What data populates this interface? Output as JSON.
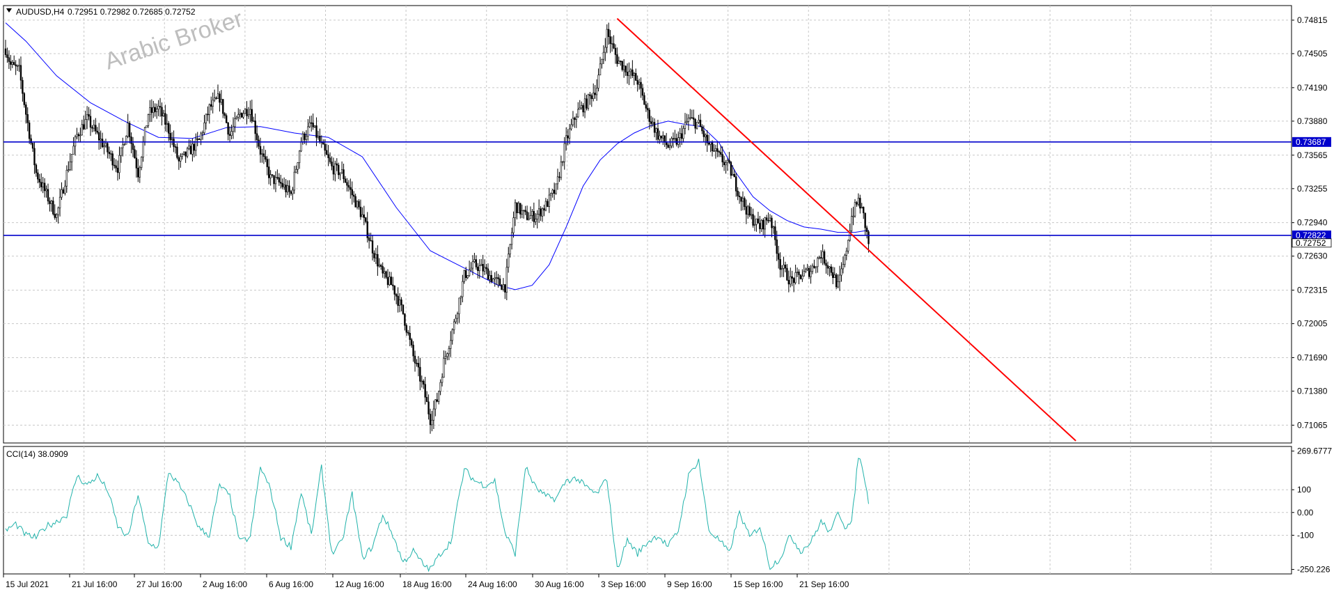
{
  "header": {
    "symbol_label": "AUDUSD,H4",
    "ohlc_text": "0.72951 0.72982 0.72685 0.72752"
  },
  "watermark": "Arabic Broker",
  "colors": {
    "grid": "#c8c8c8",
    "candle": "#000000",
    "ma": "#0000ff",
    "level": "#0000cc",
    "trend": "#ff0000",
    "cci": "#20b2aa",
    "tag_bg": "#0000cc"
  },
  "chart_data": [
    {
      "type": "candlestick",
      "title": "AUDUSD,H4",
      "ylim": [
        0.709,
        0.7495
      ],
      "y_ticks": [
        "0.74815",
        "0.74505",
        "0.74190",
        "0.73880",
        "0.73565",
        "0.73255",
        "0.72940",
        "0.72630",
        "0.72315",
        "0.72005",
        "0.71690",
        "0.71380",
        "0.71065"
      ],
      "x_ticks": [
        "15 Jul 2021",
        "21 Jul 16:00",
        "27 Jul 16:00",
        "2 Aug 16:00",
        "6 Aug 16:00",
        "12 Aug 16:00",
        "18 Aug 16:00",
        "24 Aug 16:00",
        "30 Aug 16:00",
        "3 Sep 16:00",
        "9 Sep 16:00",
        "15 Sep 16:00",
        "21 Sep 16:00"
      ],
      "bar_count": 345,
      "close_path": [
        [
          0,
          0.7455
        ],
        [
          3,
          0.744
        ],
        [
          8,
          0.7435
        ],
        [
          12,
          0.7395
        ],
        [
          18,
          0.734
        ],
        [
          24,
          0.732
        ],
        [
          30,
          0.73
        ],
        [
          36,
          0.734
        ],
        [
          42,
          0.7375
        ],
        [
          48,
          0.739
        ],
        [
          54,
          0.7375
        ],
        [
          60,
          0.736
        ],
        [
          66,
          0.7345
        ],
        [
          72,
          0.7385
        ],
        [
          78,
          0.734
        ],
        [
          84,
          0.7395
        ],
        [
          90,
          0.74
        ],
        [
          96,
          0.738
        ],
        [
          102,
          0.735
        ],
        [
          108,
          0.736
        ],
        [
          114,
          0.737
        ],
        [
          120,
          0.74
        ],
        [
          126,
          0.741
        ],
        [
          132,
          0.7375
        ],
        [
          138,
          0.7395
        ],
        [
          144,
          0.74
        ],
        [
          150,
          0.736
        ],
        [
          156,
          0.7335
        ],
        [
          162,
          0.733
        ],
        [
          168,
          0.732
        ],
        [
          174,
          0.737
        ],
        [
          180,
          0.7385
        ],
        [
          186,
          0.7365
        ],
        [
          192,
          0.7345
        ],
        [
          198,
          0.734
        ],
        [
          204,
          0.732
        ],
        [
          210,
          0.73
        ],
        [
          216,
          0.727
        ],
        [
          222,
          0.7245
        ],
        [
          228,
          0.7235
        ],
        [
          234,
          0.721
        ],
        [
          240,
          0.717
        ],
        [
          246,
          0.714
        ],
        [
          250,
          0.7112
        ],
        [
          254,
          0.713
        ],
        [
          258,
          0.7165
        ],
        [
          264,
          0.72
        ],
        [
          270,
          0.7245
        ],
        [
          276,
          0.7255
        ],
        [
          282,
          0.725
        ],
        [
          288,
          0.724
        ],
        [
          294,
          0.7235
        ],
        [
          300,
          0.731
        ],
        [
          306,
          0.73
        ],
        [
          312,
          0.73
        ],
        [
          318,
          0.731
        ],
        [
          324,
          0.7325
        ],
        [
          330,
          0.737
        ],
        [
          336,
          0.7395
        ],
        [
          342,
          0.7405
        ],
        [
          348,
          0.742
        ],
        [
          354,
          0.747
        ],
        [
          360,
          0.7445
        ],
        [
          366,
          0.7435
        ],
        [
          372,
          0.7425
        ],
        [
          378,
          0.7395
        ],
        [
          384,
          0.7375
        ],
        [
          390,
          0.7365
        ],
        [
          396,
          0.737
        ],
        [
          402,
          0.739
        ],
        [
          408,
          0.7385
        ],
        [
          414,
          0.7365
        ],
        [
          420,
          0.7355
        ],
        [
          426,
          0.7345
        ],
        [
          432,
          0.732
        ],
        [
          438,
          0.73
        ],
        [
          444,
          0.729
        ],
        [
          450,
          0.73
        ],
        [
          456,
          0.7255
        ],
        [
          462,
          0.724
        ],
        [
          468,
          0.7245
        ],
        [
          474,
          0.725
        ],
        [
          480,
          0.7265
        ],
        [
          486,
          0.725
        ],
        [
          490,
          0.7235
        ],
        [
          494,
          0.726
        ],
        [
          498,
          0.73
        ],
        [
          502,
          0.7315
        ],
        [
          505,
          0.73
        ],
        [
          508,
          0.7275
        ]
      ],
      "moving_average": [
        [
          0,
          0.7479
        ],
        [
          12,
          0.7462
        ],
        [
          30,
          0.743
        ],
        [
          50,
          0.7405
        ],
        [
          70,
          0.7388
        ],
        [
          90,
          0.7373
        ],
        [
          110,
          0.7372
        ],
        [
          130,
          0.7382
        ],
        [
          150,
          0.7383
        ],
        [
          170,
          0.7377
        ],
        [
          190,
          0.7373
        ],
        [
          210,
          0.7355
        ],
        [
          230,
          0.7308
        ],
        [
          250,
          0.7268
        ],
        [
          270,
          0.7252
        ],
        [
          290,
          0.7236
        ],
        [
          300,
          0.7232
        ],
        [
          310,
          0.7236
        ],
        [
          320,
          0.7255
        ],
        [
          330,
          0.729
        ],
        [
          340,
          0.7328
        ],
        [
          350,
          0.7352
        ],
        [
          360,
          0.7367
        ],
        [
          370,
          0.7377
        ],
        [
          380,
          0.7384
        ],
        [
          390,
          0.7388
        ],
        [
          400,
          0.7385
        ],
        [
          410,
          0.7383
        ],
        [
          420,
          0.7368
        ],
        [
          430,
          0.734
        ],
        [
          440,
          0.7318
        ],
        [
          450,
          0.7305
        ],
        [
          460,
          0.7296
        ],
        [
          470,
          0.729
        ],
        [
          480,
          0.7288
        ],
        [
          490,
          0.7285
        ],
        [
          500,
          0.7285
        ],
        [
          508,
          0.7287
        ]
      ],
      "horizontal_levels": [
        {
          "price": 0.73687,
          "label": "0.73687"
        },
        {
          "price": 0.72822,
          "label": "0.72822"
        }
      ],
      "current_price_label": "0.72752",
      "current_price": 0.72752,
      "trendline": {
        "x1": 360,
        "y1": 0.7483,
        "x2": 630,
        "y2": 0.7092
      }
    },
    {
      "type": "line",
      "title": "CCI(14) 38.0909",
      "ylim": [
        -270,
        290
      ],
      "y_ticks": [
        {
          "value": 269.6777,
          "label": "269.6777"
        },
        {
          "value": 100,
          "label": "100"
        },
        {
          "value": 0,
          "label": "0.00"
        },
        {
          "value": -100,
          "label": "-100"
        },
        {
          "value": -250.226,
          "label": "-250.226"
        }
      ],
      "values_path": [
        [
          0,
          -80
        ],
        [
          6,
          -50
        ],
        [
          12,
          -100
        ],
        [
          18,
          -110
        ],
        [
          24,
          -60
        ],
        [
          30,
          -40
        ],
        [
          36,
          -10
        ],
        [
          42,
          160
        ],
        [
          48,
          120
        ],
        [
          54,
          160
        ],
        [
          60,
          100
        ],
        [
          66,
          -60
        ],
        [
          72,
          -110
        ],
        [
          78,
          80
        ],
        [
          84,
          -140
        ],
        [
          90,
          -150
        ],
        [
          96,
          180
        ],
        [
          102,
          120
        ],
        [
          108,
          40
        ],
        [
          114,
          -70
        ],
        [
          120,
          -100
        ],
        [
          126,
          120
        ],
        [
          132,
          70
        ],
        [
          138,
          -130
        ],
        [
          144,
          -110
        ],
        [
          150,
          200
        ],
        [
          156,
          100
        ],
        [
          162,
          -110
        ],
        [
          168,
          -150
        ],
        [
          174,
          90
        ],
        [
          180,
          -100
        ],
        [
          186,
          200
        ],
        [
          192,
          -180
        ],
        [
          198,
          -130
        ],
        [
          204,
          80
        ],
        [
          210,
          -200
        ],
        [
          216,
          -150
        ],
        [
          222,
          -10
        ],
        [
          228,
          -100
        ],
        [
          234,
          -220
        ],
        [
          240,
          -170
        ],
        [
          246,
          -230
        ],
        [
          250,
          -250
        ],
        [
          256,
          -180
        ],
        [
          262,
          -130
        ],
        [
          270,
          190
        ],
        [
          276,
          140
        ],
        [
          282,
          120
        ],
        [
          288,
          140
        ],
        [
          294,
          -90
        ],
        [
          300,
          -180
        ],
        [
          306,
          200
        ],
        [
          312,
          110
        ],
        [
          318,
          70
        ],
        [
          324,
          60
        ],
        [
          330,
          140
        ],
        [
          336,
          150
        ],
        [
          342,
          110
        ],
        [
          348,
          80
        ],
        [
          354,
          150
        ],
        [
          360,
          -250
        ],
        [
          366,
          -120
        ],
        [
          372,
          -180
        ],
        [
          378,
          -130
        ],
        [
          384,
          -100
        ],
        [
          390,
          -150
        ],
        [
          396,
          -80
        ],
        [
          402,
          160
        ],
        [
          408,
          230
        ],
        [
          414,
          -80
        ],
        [
          420,
          -120
        ],
        [
          426,
          -180
        ],
        [
          432,
          0
        ],
        [
          438,
          -110
        ],
        [
          444,
          -60
        ],
        [
          450,
          -240
        ],
        [
          456,
          -200
        ],
        [
          462,
          -100
        ],
        [
          468,
          -170
        ],
        [
          474,
          -130
        ],
        [
          480,
          -40
        ],
        [
          486,
          -90
        ],
        [
          490,
          10
        ],
        [
          494,
          -60
        ],
        [
          498,
          -50
        ],
        [
          502,
          250
        ],
        [
          505,
          180
        ],
        [
          508,
          38
        ]
      ]
    },
    {
      "type": "table",
      "title": "Time axis",
      "rows": []
    }
  ]
}
